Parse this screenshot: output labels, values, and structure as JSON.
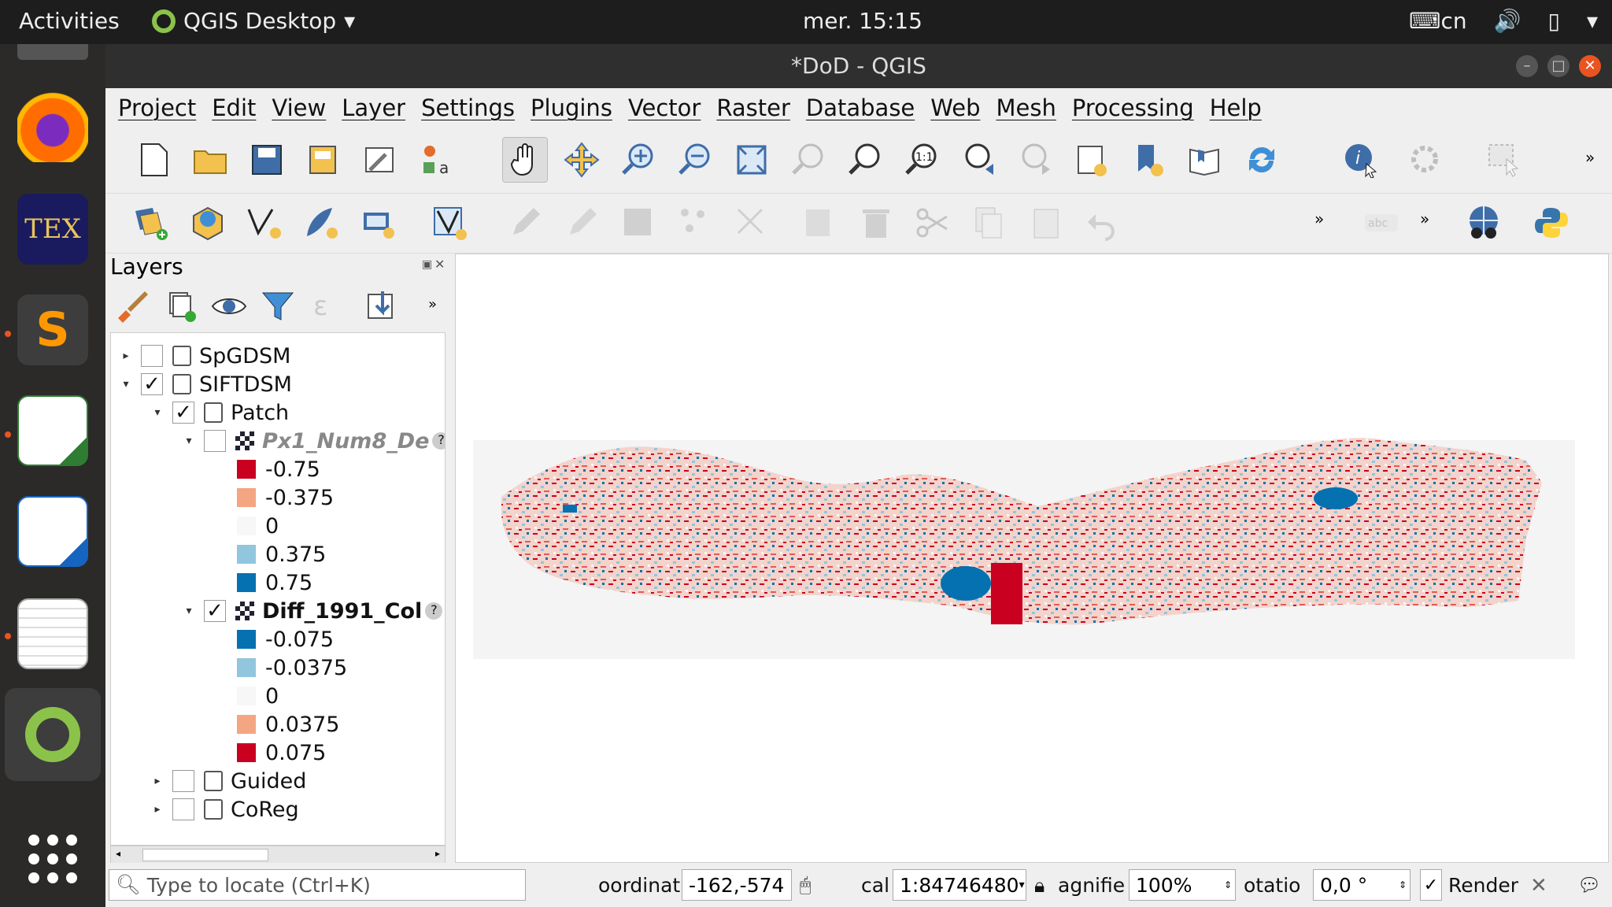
{
  "topbar": {
    "activities": "Activities",
    "app_name": "QGIS Desktop",
    "clock": "mer. 15:15",
    "keyboard_layout": "cn"
  },
  "window": {
    "title": "*DoD - QGIS"
  },
  "menu": [
    "Project",
    "Edit",
    "View",
    "Layer",
    "Settings",
    "Plugins",
    "Vector",
    "Raster",
    "Database",
    "Web",
    "Mesh",
    "Processing",
    "Help"
  ],
  "layers_panel": {
    "title": "Layers",
    "items": {
      "spgdsm": "SpGDSM",
      "siftdsm": "SIFTDSM",
      "patch": "Patch",
      "px1": "Px1_Num8_De",
      "px1_legend": [
        "-0.75",
        "-0.375",
        "0",
        "0.375",
        "0.75"
      ],
      "diff": "Diff_1991_Col",
      "diff_legend": [
        "-0.075",
        "-0.0375",
        "0",
        "0.0375",
        "0.075"
      ],
      "guided": "Guided",
      "coreg": "CoReg"
    },
    "legend_colors": [
      "#ca0020",
      "#f4a582",
      "#f7f7f7",
      "#92c5de",
      "#0571b0"
    ],
    "diff_colors": [
      "#0571b0",
      "#92c5de",
      "#f7f7f7",
      "#f4a582",
      "#ca0020"
    ]
  },
  "statusbar": {
    "locator_placeholder": "Type to locate (Ctrl+K)",
    "coordinate_label": "oordinat",
    "coordinate_value": "-162,-574",
    "scale_label": "cal",
    "scale_value": "1:84746480",
    "magnifier_label": "agnifie",
    "magnifier_value": "100%",
    "rotation_label": "otatio",
    "rotation_value": "0,0 °",
    "render_label": "Render"
  }
}
